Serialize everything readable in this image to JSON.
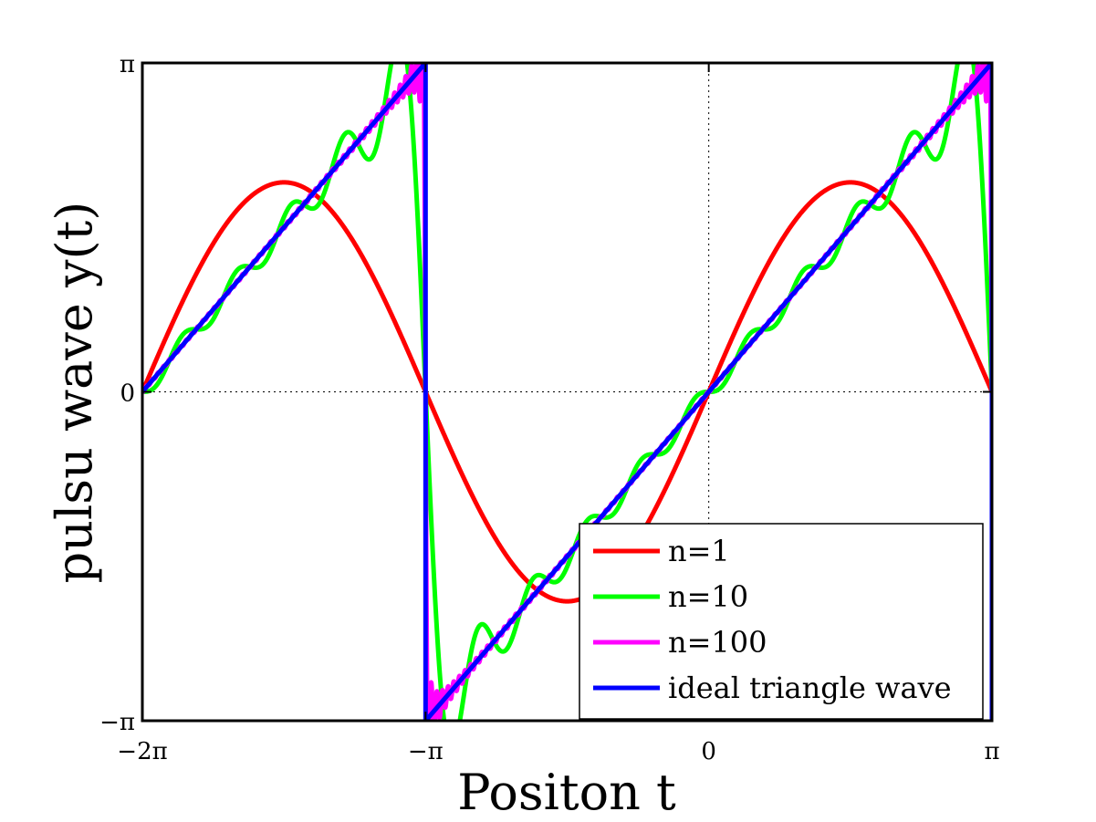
{
  "chart_data": {
    "type": "line",
    "title": "",
    "xlabel": "Positon t",
    "ylabel": "pulsu wave y(t)",
    "xlim": [
      -6.2832,
      3.1416
    ],
    "ylim": [
      -3.14,
      3.14
    ],
    "x_ticks": [
      {
        "value": -6.2832,
        "label": "−2π"
      },
      {
        "value": -3.1416,
        "label": "−π"
      },
      {
        "value": 0,
        "label": "0"
      },
      {
        "value": 3.1416,
        "label": "π"
      }
    ],
    "y_ticks": [
      {
        "value": -3.1416,
        "label": "−π"
      },
      {
        "value": 0,
        "label": "0"
      },
      {
        "value": 3.1416,
        "label": "π"
      }
    ],
    "grid": true,
    "legend_location": "bottom-right",
    "series": [
      {
        "name": "n=1",
        "color": "#ff0000",
        "harmonics": 1
      },
      {
        "name": "n=10",
        "color": "#00ff00",
        "harmonics": 10
      },
      {
        "name": "n=100",
        "color": "#ff00ff",
        "harmonics": 100
      },
      {
        "name": "ideal triangle wave",
        "color": "#0000ff",
        "harmonics": 0
      }
    ]
  }
}
